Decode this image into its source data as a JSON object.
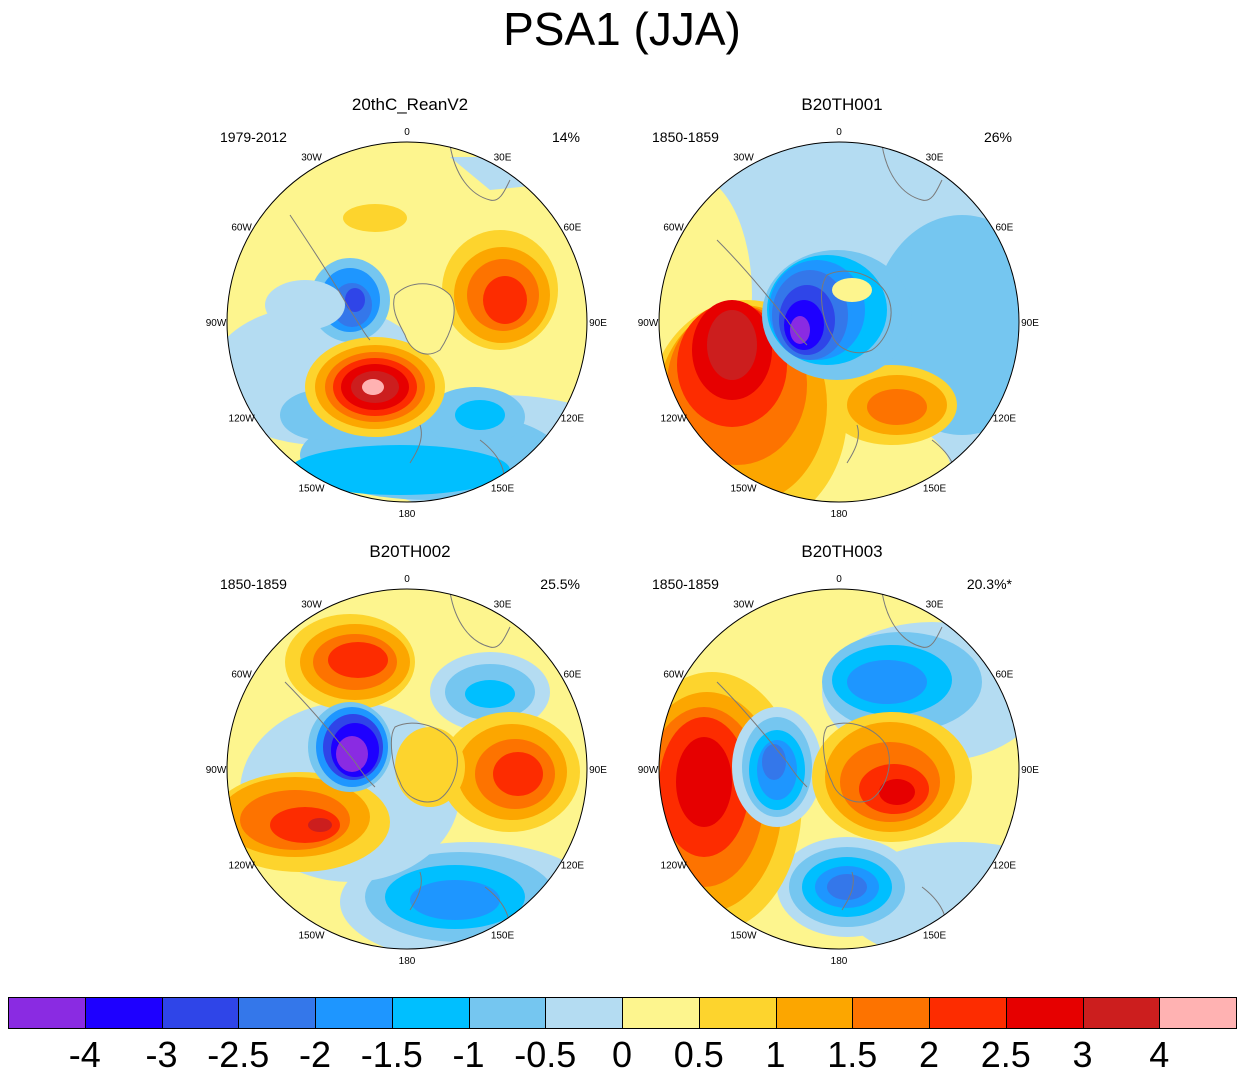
{
  "title": "PSA1 (JJA)",
  "lon_labels": [
    "0",
    "30E",
    "60E",
    "90E",
    "120E",
    "150E",
    "180",
    "150W",
    "120W",
    "90W",
    "60W",
    "30W"
  ],
  "panels": [
    {
      "title": "20thC_ReanV2",
      "period": "1979-2012",
      "variance": "14%"
    },
    {
      "title": "B20TH001",
      "period": "1850-1859",
      "variance": "26%"
    },
    {
      "title": "B20TH002",
      "period": "1850-1859",
      "variance": "25.5%"
    },
    {
      "title": "B20TH003",
      "period": "1850-1859",
      "variance": "20.3%*"
    }
  ],
  "colorbar": {
    "colors": [
      "#8a2be2",
      "#1e00ff",
      "#2f45e8",
      "#3477ea",
      "#1e96ff",
      "#00bfff",
      "#75c6f0",
      "#b4dcf2",
      "#fdf58e",
      "#fdd42d",
      "#fca600",
      "#fd7300",
      "#fd2c00",
      "#e60000",
      "#cc1e1e",
      "#ffb2b2"
    ],
    "labels": [
      "-4",
      "-3",
      "-2.5",
      "-2",
      "-1.5",
      "-1",
      "-0.5",
      "0",
      "0.5",
      "1",
      "1.5",
      "2",
      "2.5",
      "3",
      "4"
    ]
  },
  "colors": {
    "continent_outline": "#7a7a7a",
    "circle_border": "#000000"
  }
}
